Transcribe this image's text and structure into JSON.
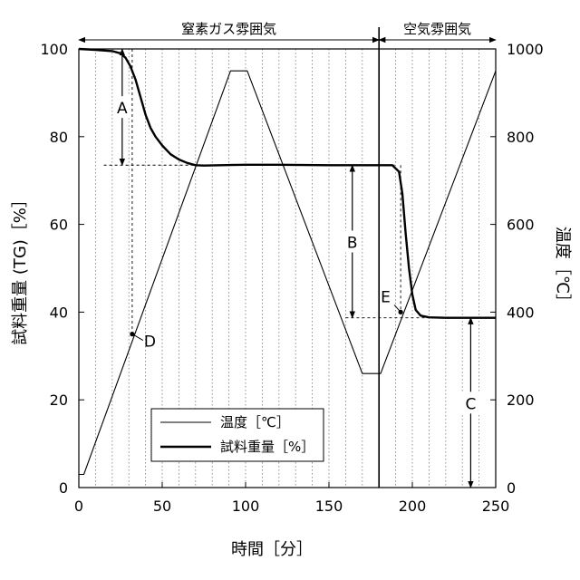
{
  "chart_data": {
    "type": "line",
    "title": "",
    "xlabel": "時間［分］",
    "ylabel_left": "試料重量 (TG)［%］",
    "ylabel_right": "温度［℃］",
    "xlim": [
      0,
      250
    ],
    "ylim_left": [
      0,
      100
    ],
    "ylim_right": [
      0,
      1000
    ],
    "xticks": [
      0,
      50,
      100,
      150,
      200,
      250
    ],
    "yticks_left": [
      0,
      20,
      40,
      60,
      80,
      100
    ],
    "yticks_right": [
      0,
      200,
      400,
      600,
      800,
      1000
    ],
    "grid": "vertical dotted every 10 min",
    "legend_position": "lower-left",
    "legend": [
      "温度［℃］",
      "試料重量［%］"
    ],
    "atmospheres": [
      {
        "label": "窒素ガス雰囲気",
        "from": 0,
        "to": 180
      },
      {
        "label": "空気雰囲気",
        "from": 180,
        "to": 250
      }
    ],
    "switch_time": 180,
    "series": [
      {
        "name": "温度［℃］",
        "axis": "right",
        "style": "thin",
        "x": [
          0,
          3,
          91,
          101,
          170,
          181,
          250
        ],
        "y": [
          30,
          30,
          950,
          950,
          260,
          260,
          950
        ]
      },
      {
        "name": "試料重量［%］",
        "axis": "left",
        "style": "thick",
        "x": [
          0,
          10,
          20,
          25,
          28,
          31,
          34,
          37,
          40,
          43,
          46,
          50,
          55,
          60,
          65,
          70,
          75,
          85,
          100,
          120,
          150,
          170,
          180,
          188,
          192,
          194,
          196,
          198,
          200,
          202,
          205,
          210,
          220,
          235,
          250
        ],
        "y": [
          100,
          99.8,
          99.5,
          99,
          98,
          96,
          93,
          89,
          85,
          82,
          80,
          78,
          76,
          74.8,
          74,
          73.5,
          73.4,
          73.5,
          73.6,
          73.6,
          73.5,
          73.5,
          73.5,
          73.5,
          72,
          67,
          58,
          50,
          44,
          40.5,
          39.2,
          38.8,
          38.7,
          38.7,
          38.7
        ]
      }
    ],
    "annotations": [
      {
        "label": "A",
        "kind": "arrow",
        "x": 26,
        "y_from": 100,
        "y_to": 73.5
      },
      {
        "label": "B",
        "kind": "arrow",
        "x": 164,
        "y_from": 73.5,
        "y_to": 38.7
      },
      {
        "label": "C",
        "kind": "arrow",
        "x": 235,
        "y_from": 38.7,
        "y_to": 0
      },
      {
        "label": "D",
        "kind": "point",
        "x": 32,
        "y": 35
      },
      {
        "label": "E",
        "kind": "point",
        "x": 193,
        "y": 40
      }
    ],
    "guide_lines": [
      {
        "kind": "h",
        "y": 73.5,
        "x_from": 15,
        "x_to": 190
      },
      {
        "kind": "h",
        "y": 38.7,
        "x_from": 160,
        "x_to": 210
      },
      {
        "kind": "v",
        "x": 32,
        "y_from": 100,
        "y_to": 35
      },
      {
        "kind": "v",
        "x": 193,
        "y_from": 73.5,
        "y_to": 40
      }
    ]
  }
}
